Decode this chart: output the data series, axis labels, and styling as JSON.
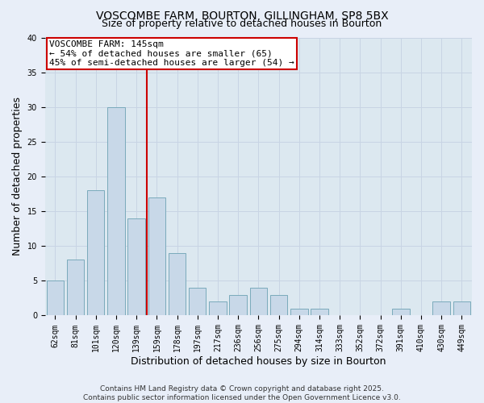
{
  "title_line1": "VOSCOMBE FARM, BOURTON, GILLINGHAM, SP8 5BX",
  "title_line2": "Size of property relative to detached houses in Bourton",
  "xlabel": "Distribution of detached houses by size in Bourton",
  "ylabel": "Number of detached properties",
  "categories": [
    "62sqm",
    "81sqm",
    "101sqm",
    "120sqm",
    "139sqm",
    "159sqm",
    "178sqm",
    "197sqm",
    "217sqm",
    "236sqm",
    "256sqm",
    "275sqm",
    "294sqm",
    "314sqm",
    "333sqm",
    "352sqm",
    "372sqm",
    "391sqm",
    "410sqm",
    "430sqm",
    "449sqm"
  ],
  "values": [
    5,
    8,
    18,
    30,
    14,
    17,
    9,
    4,
    2,
    3,
    4,
    3,
    1,
    1,
    0,
    0,
    0,
    1,
    0,
    2,
    2
  ],
  "bar_color": "#c8d8e8",
  "bar_edge_color": "#7aaabb",
  "vline_index": 4,
  "vline_color": "#cc0000",
  "annotation_text": "VOSCOMBE FARM: 145sqm\n← 54% of detached houses are smaller (65)\n45% of semi-detached houses are larger (54) →",
  "annotation_box_facecolor": "#ffffff",
  "annotation_box_edgecolor": "#cc0000",
  "ylim": [
    0,
    40
  ],
  "yticks": [
    0,
    5,
    10,
    15,
    20,
    25,
    30,
    35,
    40
  ],
  "grid_color": "#c8d4e4",
  "plot_bg_color": "#dce8f0",
  "fig_bg_color": "#e8eef8",
  "title_fontsize": 10,
  "subtitle_fontsize": 9,
  "axis_label_fontsize": 9,
  "tick_fontsize": 7,
  "annotation_fontsize": 8,
  "footer_fontsize": 6.5,
  "footer_line1": "Contains HM Land Registry data © Crown copyright and database right 2025.",
  "footer_line2": "Contains public sector information licensed under the Open Government Licence v3.0."
}
